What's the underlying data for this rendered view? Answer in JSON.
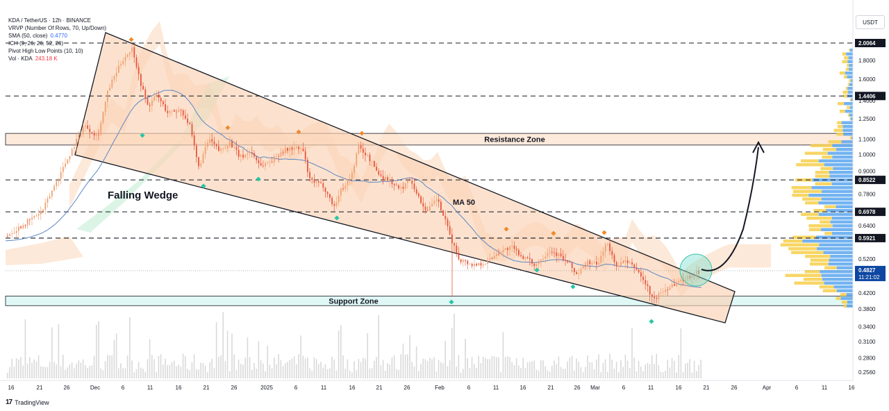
{
  "legend": {
    "line1": "KDA / TetherUS · 12h · BINANCE",
    "line2": "VRVP (Number Of Rows, 70, Up/Down)",
    "line3_label": "SMA (50, close)",
    "line3_value": "0.4770",
    "line4": "ICH (9, 26, 26, 52, 26)",
    "line5": "Pivot High Low Points (10, 10)",
    "line6_label": "Vol · KDA",
    "line6_value": "243.18 K"
  },
  "currency": "USDT",
  "branding": "TradingView",
  "colors": {
    "wedge_fill": "#fbd3b3",
    "cloud_fill": "#fde3cf",
    "cloud_green": "#c5ecd4",
    "support_fill": "#d4f4f1",
    "resistance_fill": "#fde3cf",
    "candle_red": "#e8543a",
    "candle_green": "#f0a070",
    "ma_line": "#5b86c5",
    "pivot_high": "#f08a2c",
    "pivot_low": "#26c6a6",
    "vrvp_up": "#5aa6ee",
    "vrvp_down": "#f7cf4a",
    "axis_text": "#131722",
    "dark_label_bg": "#131722",
    "price_label_bg": "#0d47a1"
  },
  "chart_data": {
    "type": "candlestick",
    "symbol": "KDA / TetherUS",
    "timeframe": "12h",
    "exchange": "BINANCE",
    "y_axis": {
      "scale": "log",
      "ylim": [
        0.24,
        2.3
      ],
      "ticks": [
        "1.8000",
        "1.6000",
        "1.4000",
        "1.2500",
        "1.1000",
        "1.0000",
        "0.9000",
        "0.7800",
        "0.6400",
        "0.5200",
        "0.4200",
        "0.3800",
        "0.3400",
        "0.3100",
        "0.2800",
        "0.2560"
      ]
    },
    "x_axis": {
      "ticks": [
        "16",
        "21",
        "26",
        "Dec",
        "6",
        "11",
        "16",
        "21",
        "26",
        "2025",
        "6",
        "11",
        "16",
        "21",
        "26",
        "Feb",
        "6",
        "11",
        "16",
        "21",
        "26",
        "Mar",
        "6",
        "11",
        "16",
        "21",
        "26",
        "Apr",
        "6",
        "11",
        "16"
      ]
    },
    "levels": [
      {
        "value": 2.0064,
        "label": "2.0064"
      },
      {
        "value": 1.4406,
        "label": "1.4406"
      },
      {
        "value": 0.8522,
        "label": "0.8522"
      },
      {
        "value": 0.6978,
        "label": "0.6978"
      },
      {
        "value": 0.5921,
        "label": "0.5921"
      }
    ],
    "current_price": {
      "value": 0.4827,
      "label": "0.4827",
      "countdown": "11:21:02"
    },
    "zones": [
      {
        "name": "Resistance Zone",
        "low": 1.06,
        "high": 1.14
      },
      {
        "name": "Support Zone",
        "low": 0.388,
        "high": 0.412
      }
    ],
    "annotations": {
      "pattern": "Falling Wedge",
      "ma_label": "MA 50"
    },
    "wedge": {
      "upper_start": {
        "date": "Nov 29",
        "price": 2.1
      },
      "lower_start": {
        "date": "Nov 27",
        "price": 1.0
      },
      "upper_end": {
        "date": "Mar 25",
        "price": 0.44
      },
      "lower_end": {
        "date": "Mar 22",
        "price": 0.34
      }
    },
    "projection": {
      "from_price": 0.48,
      "to_price": 1.07
    }
  }
}
